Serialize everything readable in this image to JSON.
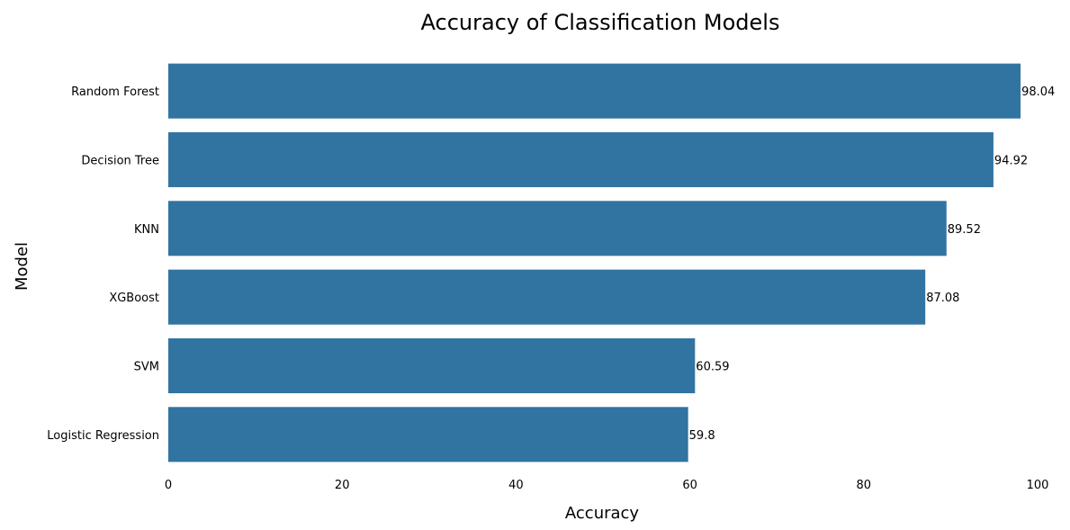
{
  "chart_data": {
    "type": "bar",
    "orientation": "horizontal",
    "title": "Accuracy of Classification Models",
    "xlabel": "Accuracy",
    "ylabel": "Model",
    "categories": [
      "Random Forest",
      "Decision Tree",
      "KNN",
      "XGBoost",
      "SVM",
      "Logistic Regression"
    ],
    "values": [
      98.04,
      94.92,
      89.52,
      87.08,
      60.59,
      59.8
    ],
    "data_labels": [
      "98.04",
      "94.92",
      "89.52",
      "87.08",
      "60.59",
      "59.8"
    ],
    "xlim": [
      0,
      100
    ],
    "xticks": [
      0,
      20,
      40,
      60,
      80,
      100
    ],
    "xtick_labels": [
      "0",
      "20",
      "40",
      "60",
      "80",
      "100"
    ],
    "bar_color": "#3274a1",
    "grid": false,
    "legend": "none"
  }
}
